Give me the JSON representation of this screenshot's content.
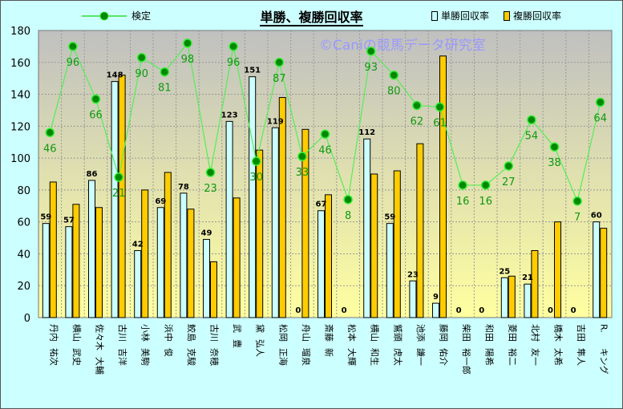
{
  "chart_data": {
    "type": "bar",
    "title": "単勝、複勝回収率",
    "watermark": "©Caniの競馬データ研究室",
    "ylim": [
      0,
      180
    ],
    "yticks": [
      0,
      20,
      40,
      60,
      80,
      100,
      120,
      140,
      160,
      180
    ],
    "grid": true,
    "legend_placement": "top",
    "categories": [
      "丹内 祐次",
      "横山 武史",
      "佐々木 大輔",
      "古川 吉洋",
      "小林 美駒",
      "浜中 俊",
      "鮫島 克駿",
      "古川 奈穂",
      "武 豊",
      "黛 弘人",
      "松岡 正海",
      "舟山 瑠泉",
      "斎藤 新",
      "松本 大輝",
      "横山 和生",
      "鷲頭 虎太",
      "池添 謙一",
      "藤岡 佑介",
      "柴田 裕一郎",
      "和田 陽希",
      "菱田 裕二",
      "北村 友一",
      "橋木 太希",
      "吉田 隼人",
      "R. キング"
    ],
    "series": [
      {
        "name": "単勝回収率",
        "type": "bar",
        "color": "#ccffff",
        "values": [
          59,
          57,
          86,
          148,
          42,
          69,
          78,
          49,
          123,
          151,
          119,
          0,
          67,
          0,
          112,
          59,
          23,
          9,
          0,
          0,
          25,
          21,
          0,
          0,
          60
        ],
        "labeled": true
      },
      {
        "name": "複勝回収率",
        "type": "bar",
        "color": "#ffcc00",
        "values": [
          85,
          71,
          69,
          152,
          80,
          91,
          68,
          35,
          75,
          105,
          138,
          118,
          77,
          0,
          90,
          92,
          109,
          164,
          0,
          0,
          26,
          42,
          60,
          0,
          56
        ]
      },
      {
        "name": "検定",
        "type": "line",
        "color": "#009900",
        "labels": [
          46,
          96,
          66,
          21,
          90,
          81,
          98,
          23,
          96,
          30,
          87,
          33,
          46,
          8,
          93,
          80,
          62,
          61,
          16,
          16,
          27,
          54,
          38,
          7,
          64
        ],
        "plotted_values": [
          116,
          170,
          137,
          88,
          163,
          154,
          172,
          91,
          170,
          98,
          160,
          101,
          115,
          74,
          167,
          152,
          133,
          132,
          83,
          83,
          95,
          124,
          107,
          73,
          135
        ]
      }
    ]
  }
}
